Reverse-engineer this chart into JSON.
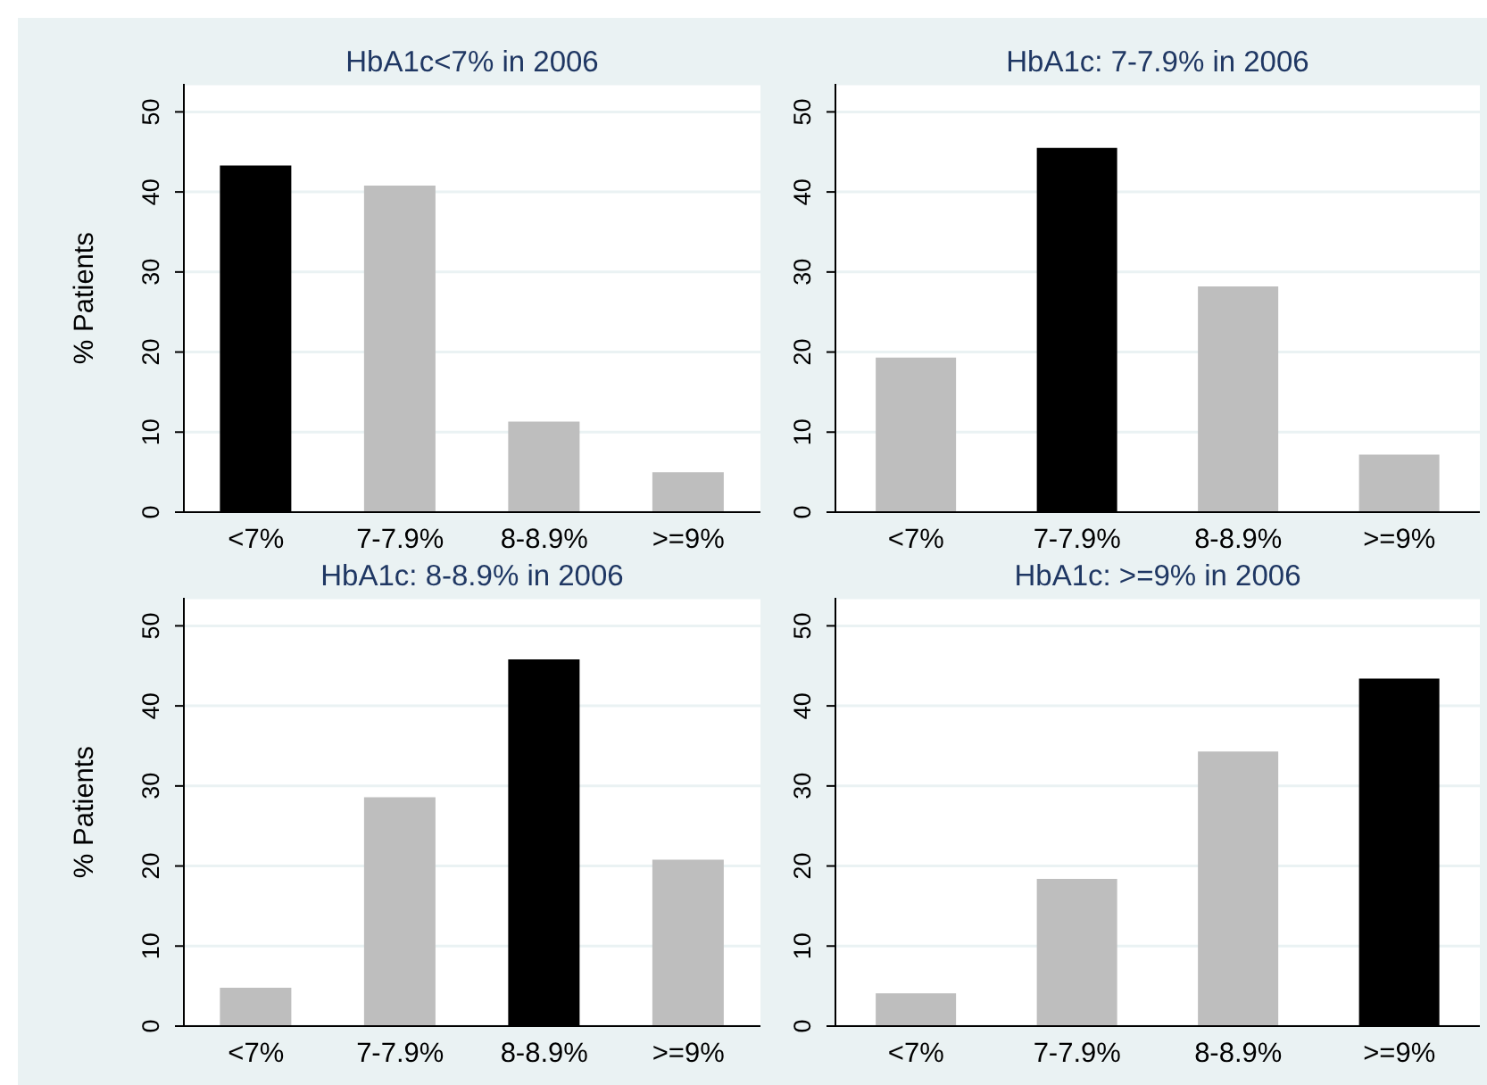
{
  "chart_data": [
    {
      "type": "bar",
      "title": "HbA1c<7% in 2006",
      "ylabel": "% Patients",
      "categories": [
        "<7%",
        "7-7.9%",
        "8-8.9%",
        ">=9%"
      ],
      "values": [
        43.3,
        40.8,
        11.3,
        5.0
      ],
      "colors": [
        "#000000",
        "#bebebe",
        "#bebebe",
        "#bebebe"
      ],
      "ylim": [
        0,
        53.5
      ],
      "yticks": [
        0,
        10,
        20,
        30,
        40,
        50
      ],
      "grid": "y"
    },
    {
      "type": "bar",
      "title": "HbA1c: 7-7.9% in 2006",
      "categories": [
        "<7%",
        "7-7.9%",
        "8-8.9%",
        ">=9%"
      ],
      "values": [
        19.3,
        45.5,
        28.2,
        7.2
      ],
      "colors": [
        "#bebebe",
        "#000000",
        "#bebebe",
        "#bebebe"
      ],
      "ylim": [
        0,
        53.5
      ],
      "yticks": [
        0,
        10,
        20,
        30,
        40,
        50
      ],
      "grid": "y"
    },
    {
      "type": "bar",
      "title": "HbA1c: 8-8.9% in 2006",
      "ylabel": "% Patients",
      "categories": [
        "<7%",
        "7-7.9%",
        "8-8.9%",
        ">=9%"
      ],
      "values": [
        4.8,
        28.6,
        45.8,
        20.8
      ],
      "colors": [
        "#bebebe",
        "#bebebe",
        "#000000",
        "#bebebe"
      ],
      "ylim": [
        0,
        53.5
      ],
      "yticks": [
        0,
        10,
        20,
        30,
        40,
        50
      ],
      "grid": "y"
    },
    {
      "type": "bar",
      "title": "HbA1c: >=9% in 2006",
      "categories": [
        "<7%",
        "7-7.9%",
        "8-8.9%",
        ">=9%"
      ],
      "values": [
        4.1,
        18.4,
        34.3,
        43.4
      ],
      "colors": [
        "#bebebe",
        "#bebebe",
        "#bebebe",
        "#000000"
      ],
      "ylim": [
        0,
        53.5
      ],
      "yticks": [
        0,
        10,
        20,
        30,
        40,
        50
      ],
      "grid": "y"
    }
  ]
}
